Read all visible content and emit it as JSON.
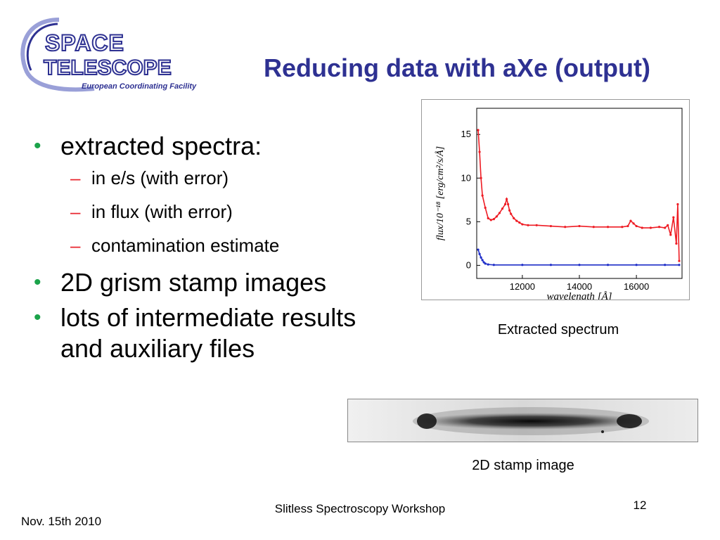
{
  "logo": {
    "line1": "SPACE",
    "line2": "TELESCOPE",
    "tagline": "European Coordinating Facility",
    "color": "#2e3192",
    "ring_color": "#9aa0d8"
  },
  "title": "Reducing data with aXe (output)",
  "bullets": [
    {
      "text": "extracted spectra:",
      "sub": [
        "in e/s (with error)",
        "in flux (with error)",
        "contamination estimate"
      ]
    },
    {
      "text": "2D grism stamp images",
      "sub": []
    },
    {
      "text": "lots of intermediate results and auxiliary files",
      "sub": []
    }
  ],
  "bullet_color": "#1ba34a",
  "dash_color": "#e8252e",
  "chart_data": {
    "type": "line",
    "xlabel": "wavelength [Å]",
    "ylabel": "flux/10⁻¹⁸ [erg/cm²/s/Å]",
    "xlim": [
      10400,
      17600
    ],
    "ylim": [
      -1.5,
      18
    ],
    "xticks": [
      12000,
      14000,
      16000
    ],
    "yticks": [
      0,
      5,
      10,
      15
    ],
    "series": [
      {
        "color": "#ee1c24",
        "x": [
          10450,
          10500,
          10550,
          10600,
          10700,
          10800,
          10900,
          11000,
          11100,
          11200,
          11300,
          11400,
          11450,
          11500,
          11550,
          11600,
          11700,
          11800,
          11900,
          12000,
          12200,
          12500,
          13000,
          13500,
          14000,
          14500,
          15000,
          15500,
          15700,
          15800,
          15900,
          16000,
          16200,
          16500,
          16800,
          17000,
          17100,
          17200,
          17300,
          17400,
          17450,
          17500
        ],
        "y": [
          15.5,
          13,
          10,
          8,
          6.6,
          5.4,
          5.2,
          5.3,
          5.6,
          6,
          6.5,
          7,
          7.6,
          7.0,
          6.3,
          5.9,
          5.4,
          5.1,
          4.9,
          4.7,
          4.6,
          4.6,
          4.5,
          4.4,
          4.5,
          4.4,
          4.4,
          4.4,
          4.5,
          5.1,
          4.8,
          4.5,
          4.3,
          4.3,
          4.4,
          4.3,
          4.6,
          3.5,
          5.5,
          2.5,
          7,
          0.5
        ]
      },
      {
        "color": "#1f2ec8",
        "x": [
          10450,
          10500,
          10550,
          10600,
          10650,
          10700,
          10800,
          11000,
          12000,
          13000,
          14000,
          15000,
          16000,
          17000,
          17500
        ],
        "y": [
          1.8,
          1.3,
          0.9,
          0.6,
          0.35,
          0.2,
          0.1,
          0.05,
          0.05,
          0.05,
          0.05,
          0.05,
          0.05,
          0.05,
          0.05
        ]
      }
    ]
  },
  "captions": {
    "spectrum": "Extracted spectrum",
    "stamp": "2D stamp image"
  },
  "footer": {
    "center": "Slitless Spectroscopy Workshop",
    "page": "12",
    "date": "Nov. 15th 2010"
  }
}
